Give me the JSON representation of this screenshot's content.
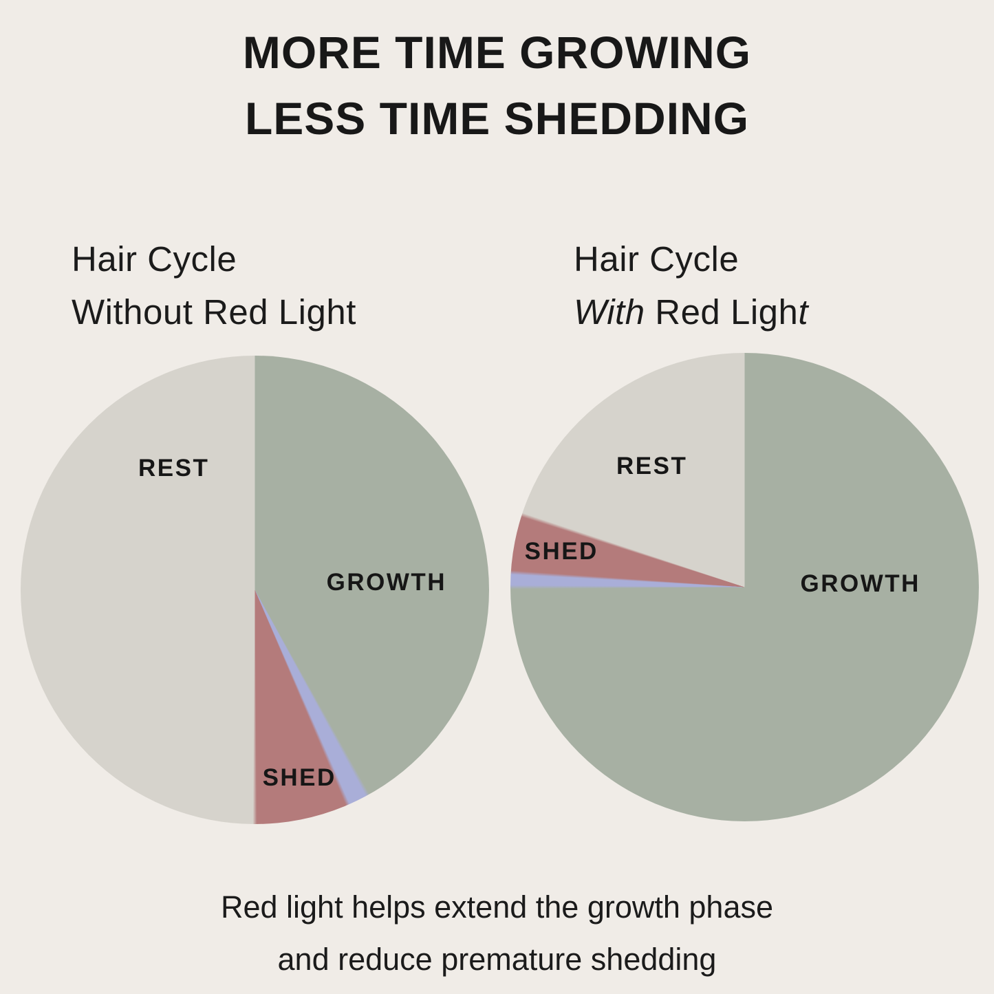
{
  "page": {
    "background_color": "#f0ece7",
    "text_color": "#181818"
  },
  "title": {
    "line1": "MORE TIME GROWING",
    "line2": "LESS TIME SHEDDING"
  },
  "caption": {
    "line1": "Red light helps extend the growth phase",
    "line2": "and reduce premature shedding"
  },
  "chart_data": [
    {
      "type": "pie",
      "title": "Hair Cycle Without Red Light",
      "subtitle_line1": "Hair Cycle",
      "subtitle_line2_segments": [
        {
          "text": "Without Red Light",
          "italic": false
        }
      ],
      "start_angle_deg": 0,
      "direction": "clockwise",
      "slices": [
        {
          "label": "GROWTH",
          "value": 42,
          "color": "#a7b0a3"
        },
        {
          "label": "",
          "value": 1.5,
          "color": "#a9aed8"
        },
        {
          "label": "SHED",
          "value": 6.5,
          "color": "#b47b7b"
        },
        {
          "label": "REST",
          "value": 50,
          "color": "#d6d3cc"
        }
      ]
    },
    {
      "type": "pie",
      "title": "Hair Cycle With Red Light",
      "subtitle_line1": "Hair Cycle",
      "subtitle_line2_segments": [
        {
          "text": "With",
          "italic": true
        },
        {
          "text": " Red Ligh",
          "italic": false
        },
        {
          "text": "t",
          "italic": true
        }
      ],
      "start_angle_deg": 0,
      "direction": "clockwise",
      "slices": [
        {
          "label": "GROWTH",
          "value": 75,
          "color": "#a7b0a3"
        },
        {
          "label": "",
          "value": 1,
          "color": "#a9aed8"
        },
        {
          "label": "SHED",
          "value": 4,
          "color": "#b47b7b"
        },
        {
          "label": "REST",
          "value": 20,
          "color": "#d6d3cc"
        }
      ]
    }
  ]
}
